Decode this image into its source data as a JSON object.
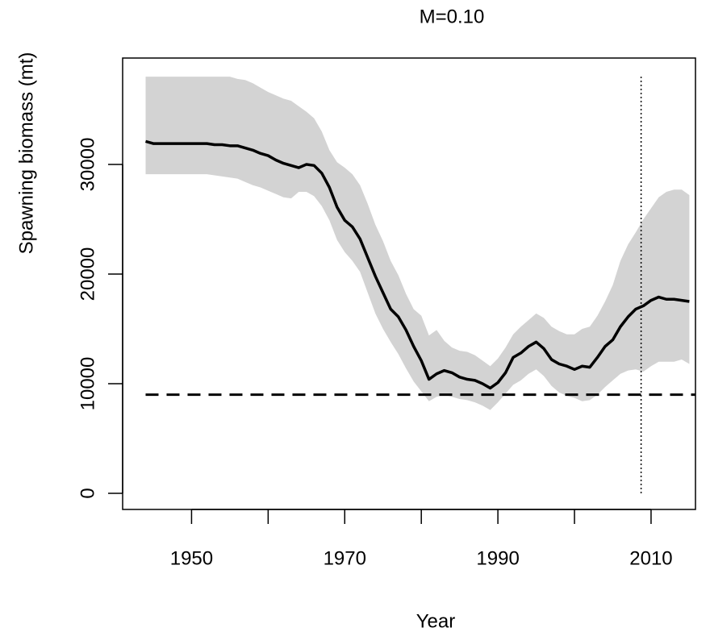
{
  "chart_data": {
    "type": "line",
    "title": "M=0.10",
    "xlabel": "Year",
    "ylabel": "Spawning biomass (mt)",
    "x": [
      1944,
      1945,
      1946,
      1947,
      1948,
      1949,
      1950,
      1951,
      1952,
      1953,
      1954,
      1955,
      1956,
      1957,
      1958,
      1959,
      1960,
      1961,
      1962,
      1963,
      1964,
      1965,
      1966,
      1967,
      1968,
      1969,
      1970,
      1971,
      1972,
      1973,
      1974,
      1975,
      1976,
      1977,
      1978,
      1979,
      1980,
      1981,
      1982,
      1983,
      1984,
      1985,
      1986,
      1987,
      1988,
      1989,
      1990,
      1991,
      1992,
      1993,
      1994,
      1995,
      1996,
      1997,
      1998,
      1999,
      2000,
      2001,
      2002,
      2003,
      2004,
      2005,
      2006,
      2007,
      2008,
      2009,
      2010,
      2011,
      2012,
      2013,
      2014,
      2015
    ],
    "series": [
      {
        "color": "#000000",
        "values": [
          32100,
          31900,
          31900,
          31900,
          31900,
          31900,
          31900,
          31900,
          31900,
          31800,
          31800,
          31700,
          31700,
          31500,
          31300,
          31000,
          30800,
          30400,
          30100,
          29900,
          29700,
          30000,
          29900,
          29200,
          27900,
          26100,
          24900,
          24300,
          23200,
          21500,
          19800,
          18300,
          16800,
          16100,
          14900,
          13400,
          12100,
          10400,
          10900,
          11200,
          11000,
          10600,
          10400,
          10300,
          10000,
          9600,
          10100,
          11000,
          12400,
          12800,
          13400,
          13800,
          13200,
          12200,
          11800,
          11600,
          11300,
          11600,
          11500,
          12400,
          13400,
          14000,
          15200,
          16100,
          16800,
          17100,
          17600,
          17900,
          17700,
          17700,
          17600,
          17500
        ]
      }
    ],
    "band": {
      "color": "#d3d3d3",
      "upper": [
        38000,
        38000,
        38000,
        38000,
        38000,
        38000,
        38000,
        38000,
        38000,
        38000,
        38000,
        38000,
        37800,
        37700,
        37400,
        37000,
        36600,
        36300,
        36000,
        35800,
        35300,
        34800,
        34200,
        33000,
        31300,
        30200,
        29700,
        29100,
        28100,
        26400,
        24500,
        23000,
        21200,
        19900,
        18200,
        16800,
        16200,
        14400,
        14900,
        13900,
        13300,
        13000,
        12900,
        12600,
        12100,
        11600,
        12300,
        13300,
        14500,
        15200,
        15800,
        16400,
        16000,
        15200,
        14800,
        14500,
        14500,
        15000,
        15200,
        16200,
        17500,
        19000,
        21200,
        22700,
        23800,
        25000,
        26000,
        27000,
        27500,
        27700,
        27700,
        27200
      ],
      "lower": [
        29100,
        29100,
        29100,
        29100,
        29100,
        29100,
        29100,
        29100,
        29100,
        29000,
        28900,
        28800,
        28700,
        28400,
        28100,
        27900,
        27600,
        27300,
        27000,
        26900,
        27500,
        27500,
        27100,
        26200,
        24900,
        23100,
        22000,
        21200,
        20200,
        18300,
        16400,
        15000,
        13800,
        12700,
        11400,
        10200,
        9300,
        8400,
        8800,
        9000,
        8800,
        8600,
        8500,
        8300,
        8000,
        7600,
        8300,
        9100,
        9900,
        10300,
        10900,
        11300,
        10700,
        9800,
        9200,
        8900,
        8700,
        8400,
        8500,
        9000,
        9700,
        10300,
        10900,
        11200,
        11300,
        11100,
        11600,
        12000,
        12000,
        12000,
        12200,
        11800
      ]
    },
    "hline": 9000,
    "vline": 2008.7,
    "xlim": [
      1941,
      2015.8
    ],
    "ylim": [
      -1470,
      39700
    ],
    "xticks": [
      1950,
      1970,
      1990,
      2010
    ],
    "xminorticks": [
      1960,
      1980,
      2000
    ],
    "yticks": [
      0,
      10000,
      20000,
      30000
    ]
  }
}
